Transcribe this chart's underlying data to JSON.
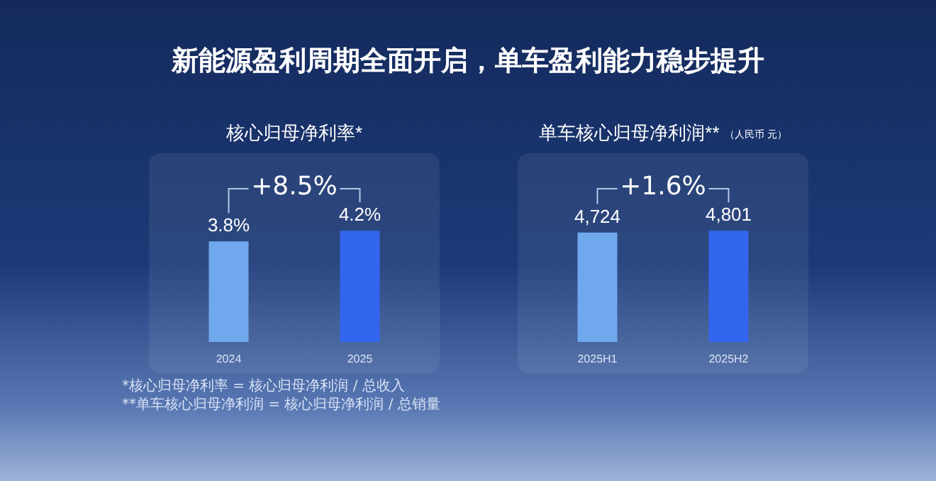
{
  "chart_data": [
    {
      "type": "bar",
      "title": "核心归母净利率*",
      "categories": [
        "2024",
        "2025"
      ],
      "values": [
        3.8,
        4.2
      ],
      "colors": [
        "#6fa8ec",
        "#3366ee"
      ],
      "value_labels": [
        "3.8%",
        "4.2%"
      ],
      "annotations": [
        "+8.5%",
        "新能源盈利周期全面开启，单车盈利能力稳步提升",
        "*核心归母净利率 = 核心归母净利润 / 总收入",
        "**单车核心归母净利润 = 核心归母净利润 / 总销量"
      ]
    },
    {
      "type": "bar",
      "title": "单车核心归母净利润**",
      "subtitle": "（人民币 元）",
      "categories": [
        "2025H1",
        "2025H2"
      ],
      "values": [
        4724,
        4801
      ],
      "colors": [
        "#6fa8ec",
        "#3366ee"
      ],
      "value_labels": [
        "4,724",
        "4,801"
      ],
      "annotations": [
        "+1.6%"
      ]
    }
  ]
}
